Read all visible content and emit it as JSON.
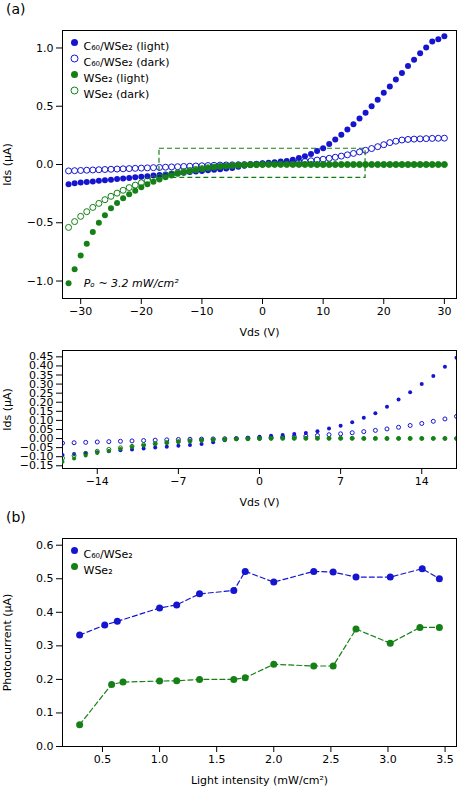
{
  "chart_data": [
    {
      "type": "scatter",
      "title": "(a)",
      "xlabel": "Vds (V)",
      "ylabel": "Ids (μA)",
      "xlim": [
        -33,
        32
      ],
      "ylim": [
        -1.15,
        1.15
      ],
      "xticks": [
        -30,
        -20,
        -10,
        0,
        10,
        20,
        30
      ],
      "yticks": [
        {
          "value": -1.0,
          "label": "−1.0"
        },
        {
          "value": -0.5,
          "label": "−0.5"
        },
        {
          "value": 0.0,
          "label": "0.0"
        },
        {
          "value": 0.5,
          "label": "0.5"
        },
        {
          "value": 1.0,
          "label": "1.0"
        }
      ],
      "legend": "upper left",
      "annotations": [
        {
          "text": "Pₒ ~ 3.2 mW/cm²",
          "x": -29.5,
          "y": -1.05
        }
      ],
      "box": {
        "x": [
          -17,
          17
        ],
        "y": [
          -0.115,
          0.135
        ],
        "color": "#158015",
        "line_style": "dashed"
      },
      "series": [
        {
          "name": "C₆₀/WSe₂ (light)",
          "color": "#1515d0",
          "marker": "circle",
          "x": [
            -32,
            -31,
            -30,
            -29,
            -28,
            -27,
            -26,
            -25,
            -24,
            -23,
            -22,
            -21,
            -20,
            -19,
            -18,
            -17,
            -16,
            -15,
            -14,
            -13,
            -12,
            -11,
            -10,
            -9,
            -8,
            -7,
            -6,
            -5,
            -4,
            -3,
            -2,
            -1,
            0,
            1,
            2,
            3,
            4,
            5,
            6,
            7,
            8,
            9,
            10,
            11,
            12,
            13,
            14,
            15,
            16,
            17,
            18,
            19,
            20,
            21,
            22,
            23,
            24,
            25,
            26,
            27,
            28,
            29,
            30
          ],
          "values": [
            -0.17,
            -0.16,
            -0.155,
            -0.15,
            -0.145,
            -0.14,
            -0.135,
            -0.13,
            -0.125,
            -0.12,
            -0.115,
            -0.11,
            -0.105,
            -0.1,
            -0.095,
            -0.09,
            -0.085,
            -0.08,
            -0.075,
            -0.07,
            -0.065,
            -0.06,
            -0.055,
            -0.05,
            -0.045,
            -0.04,
            -0.035,
            -0.03,
            -0.02,
            -0.01,
            0.0,
            0.005,
            0.01,
            0.015,
            0.02,
            0.025,
            0.03,
            0.04,
            0.055,
            0.07,
            0.09,
            0.115,
            0.14,
            0.175,
            0.215,
            0.255,
            0.3,
            0.345,
            0.395,
            0.445,
            0.5,
            0.555,
            0.615,
            0.67,
            0.73,
            0.785,
            0.845,
            0.9,
            0.955,
            1.005,
            1.055,
            1.075,
            1.1
          ]
        },
        {
          "name": "C₆₀/WSe₂ (dark)",
          "color": "#1515d0",
          "marker": "circle-open",
          "x": [
            -32,
            -31,
            -30,
            -29,
            -28,
            -27,
            -26,
            -25,
            -24,
            -23,
            -22,
            -21,
            -20,
            -19,
            -18,
            -17,
            -16,
            -15,
            -14,
            -13,
            -12,
            -11,
            -10,
            -9,
            -8,
            -7,
            -6,
            -5,
            -4,
            -3,
            -2,
            -1,
            0,
            1,
            2,
            3,
            4,
            5,
            6,
            7,
            8,
            9,
            10,
            11,
            12,
            13,
            14,
            15,
            16,
            17,
            18,
            19,
            20,
            21,
            22,
            23,
            24,
            25,
            26,
            27,
            28,
            29,
            30
          ],
          "values": [
            -0.055,
            -0.053,
            -0.051,
            -0.049,
            -0.047,
            -0.045,
            -0.043,
            -0.041,
            -0.039,
            -0.037,
            -0.035,
            -0.033,
            -0.031,
            -0.029,
            -0.027,
            -0.025,
            -0.023,
            -0.021,
            -0.019,
            -0.017,
            -0.015,
            -0.013,
            -0.011,
            -0.009,
            -0.007,
            -0.005,
            -0.004,
            -0.003,
            -0.002,
            -0.001,
            0.0,
            0.002,
            0.004,
            0.006,
            0.008,
            0.01,
            0.013,
            0.017,
            0.021,
            0.026,
            0.032,
            0.038,
            0.045,
            0.053,
            0.062,
            0.072,
            0.083,
            0.095,
            0.108,
            0.122,
            0.137,
            0.153,
            0.17,
            0.188,
            0.2,
            0.21,
            0.215,
            0.218,
            0.22,
            0.222,
            0.224,
            0.225,
            0.226
          ]
        },
        {
          "name": "WSe₂ (light)",
          "color": "#158015",
          "marker": "circle",
          "x": [
            -32,
            -31,
            -30,
            -29,
            -28,
            -27,
            -26,
            -25,
            -24,
            -23,
            -22,
            -21,
            -20,
            -19,
            -18,
            -17,
            -16,
            -15,
            -14,
            -13,
            -12,
            -11,
            -10,
            -9,
            -8,
            -7,
            -6,
            -5,
            -4,
            -3,
            -2,
            -1,
            0,
            1,
            2,
            3,
            4,
            5,
            6,
            7,
            8,
            9,
            10,
            11,
            12,
            13,
            14,
            15,
            16,
            17,
            18,
            19,
            20,
            21,
            22,
            23,
            24,
            25,
            26,
            27,
            28,
            29,
            30
          ],
          "values": [
            -1.02,
            -0.9,
            -0.78,
            -0.68,
            -0.58,
            -0.5,
            -0.435,
            -0.375,
            -0.33,
            -0.29,
            -0.255,
            -0.225,
            -0.195,
            -0.17,
            -0.148,
            -0.128,
            -0.11,
            -0.094,
            -0.08,
            -0.068,
            -0.057,
            -0.047,
            -0.038,
            -0.03,
            -0.024,
            -0.018,
            -0.014,
            -0.01,
            -0.007,
            -0.005,
            -0.003,
            -0.002,
            -0.001,
            0.0,
            0.001,
            0.001,
            0.001,
            0.001,
            0.001,
            0.001,
            0.001,
            0.001,
            0.001,
            0.001,
            0.001,
            0.001,
            0.001,
            0.001,
            0.001,
            0.001,
            0.001,
            0.001,
            0.001,
            0.001,
            0.001,
            0.001,
            0.001,
            0.001,
            0.001,
            0.001,
            0.001,
            0.001,
            0.001
          ]
        },
        {
          "name": "WSe₂ (dark)",
          "color": "#158015",
          "marker": "circle-open",
          "x": [
            -32,
            -31,
            -30,
            -29,
            -28,
            -27,
            -26,
            -25,
            -24,
            -23,
            -22,
            -21,
            -20,
            -19,
            -18,
            -17,
            -16,
            -15,
            -14,
            -13,
            -12,
            -11,
            -10,
            -9,
            -8,
            -7,
            -6,
            -5,
            -4,
            -3,
            -2,
            -1,
            0,
            1,
            2,
            3,
            4,
            5,
            6,
            7,
            8,
            9,
            10,
            11,
            12,
            13,
            14,
            15,
            16,
            17,
            18,
            19,
            20,
            21,
            22,
            23,
            24,
            25,
            26,
            27,
            28,
            29,
            30
          ],
          "values": [
            -0.54,
            -0.49,
            -0.445,
            -0.405,
            -0.368,
            -0.334,
            -0.302,
            -0.273,
            -0.246,
            -0.221,
            -0.198,
            -0.177,
            -0.157,
            -0.139,
            -0.123,
            -0.108,
            -0.094,
            -0.082,
            -0.07,
            -0.06,
            -0.051,
            -0.043,
            -0.035,
            -0.028,
            -0.022,
            -0.017,
            -0.013,
            -0.009,
            -0.006,
            -0.004,
            -0.002,
            -0.001,
            0.0,
            0.001,
            0.001,
            0.001,
            0.001,
            0.001,
            0.001,
            0.001,
            0.001,
            0.0,
            0.0,
            0.0,
            0.0,
            0.0,
            0.0,
            0.0,
            0.0,
            0.0,
            0.0,
            0.0,
            0.0,
            0.0,
            0.0,
            0.0,
            0.0,
            0.0,
            0.0,
            0.0,
            0.0,
            0.0,
            0.0
          ]
        }
      ]
    },
    {
      "type": "scatter",
      "xlabel": "Vds (V)",
      "ylabel": "Ids (μA)",
      "xlim": [
        -17,
        17
      ],
      "ylim": [
        -0.165,
        0.485
      ],
      "xticks": [
        -14,
        -7,
        0,
        7,
        14
      ],
      "yticks": [
        {
          "value": -0.15,
          "label": "−0.15"
        },
        {
          "value": -0.1,
          "label": "−0.10"
        },
        {
          "value": -0.05,
          "label": "−0.05"
        },
        {
          "value": 0.0,
          "label": "0.00"
        },
        {
          "value": 0.05,
          "label": "0.05"
        },
        {
          "value": 0.1,
          "label": "0.10"
        },
        {
          "value": 0.15,
          "label": "0.15"
        },
        {
          "value": 0.2,
          "label": "0.20"
        },
        {
          "value": 0.25,
          "label": "0.25"
        },
        {
          "value": 0.3,
          "label": "0.30"
        },
        {
          "value": 0.35,
          "label": "0.35"
        },
        {
          "value": 0.4,
          "label": "0.40"
        },
        {
          "value": 0.45,
          "label": "0.45"
        }
      ],
      "series": [
        {
          "color": "#1515d0",
          "marker": "circle",
          "x": [
            -17,
            -16,
            -15,
            -14,
            -13,
            -12,
            -11,
            -10,
            -9,
            -8,
            -7,
            -6,
            -5,
            -4,
            -3,
            -2,
            -1,
            0,
            1,
            2,
            3,
            4,
            5,
            6,
            7,
            8,
            9,
            10,
            11,
            12,
            13,
            14,
            15,
            16,
            17
          ],
          "values": [
            -0.09,
            -0.085,
            -0.08,
            -0.075,
            -0.07,
            -0.065,
            -0.06,
            -0.055,
            -0.05,
            -0.045,
            -0.04,
            -0.035,
            -0.03,
            -0.02,
            -0.01,
            0.0,
            0.005,
            0.01,
            0.015,
            0.02,
            0.025,
            0.03,
            0.04,
            0.055,
            0.07,
            0.09,
            0.115,
            0.14,
            0.175,
            0.215,
            0.255,
            0.3,
            0.345,
            0.395,
            0.445
          ]
        },
        {
          "color": "#1515d0",
          "marker": "circle-open",
          "x": [
            -17,
            -16,
            -15,
            -14,
            -13,
            -12,
            -11,
            -10,
            -9,
            -8,
            -7,
            -6,
            -5,
            -4,
            -3,
            -2,
            -1,
            0,
            1,
            2,
            3,
            4,
            5,
            6,
            7,
            8,
            9,
            10,
            11,
            12,
            13,
            14,
            15,
            16,
            17
          ],
          "values": [
            -0.025,
            -0.023,
            -0.021,
            -0.019,
            -0.017,
            -0.015,
            -0.013,
            -0.011,
            -0.009,
            -0.007,
            -0.005,
            -0.004,
            -0.003,
            -0.002,
            -0.001,
            0.0,
            0.002,
            0.004,
            0.006,
            0.008,
            0.01,
            0.013,
            0.017,
            0.021,
            0.026,
            0.032,
            0.038,
            0.045,
            0.053,
            0.062,
            0.072,
            0.083,
            0.095,
            0.108,
            0.122
          ]
        },
        {
          "color": "#158015",
          "marker": "circle",
          "x": [
            -17,
            -16,
            -15,
            -14,
            -13,
            -12,
            -11,
            -10,
            -9,
            -8,
            -7,
            -6,
            -5,
            -4,
            -3,
            -2,
            -1,
            0,
            1,
            2,
            3,
            4,
            5,
            6,
            7,
            8,
            9,
            10,
            11,
            12,
            13,
            14,
            15,
            16,
            17
          ],
          "values": [
            -0.128,
            -0.11,
            -0.094,
            -0.08,
            -0.068,
            -0.057,
            -0.047,
            -0.038,
            -0.03,
            -0.024,
            -0.018,
            -0.014,
            -0.01,
            -0.007,
            -0.005,
            -0.003,
            -0.002,
            -0.001,
            0.0,
            0.001,
            0.001,
            0.001,
            0.001,
            0.001,
            0.001,
            0.001,
            0.001,
            0.001,
            0.001,
            0.001,
            0.001,
            0.001,
            0.001,
            0.001,
            0.001
          ]
        },
        {
          "color": "#158015",
          "marker": "circle-open",
          "x": [
            -17,
            -16,
            -15,
            -14,
            -13,
            -12,
            -11,
            -10,
            -9,
            -8,
            -7,
            -6,
            -5,
            -4,
            -3,
            -2,
            -1,
            0,
            1,
            2,
            3,
            4,
            5,
            6,
            7,
            8,
            9,
            10,
            11,
            12,
            13,
            14,
            15,
            16,
            17
          ],
          "values": [
            -0.108,
            -0.094,
            -0.082,
            -0.07,
            -0.06,
            -0.051,
            -0.043,
            -0.035,
            -0.028,
            -0.022,
            -0.017,
            -0.013,
            -0.009,
            -0.006,
            -0.004,
            -0.002,
            -0.001,
            0.0,
            0.001,
            0.001,
            0.001,
            0.001,
            0.001,
            0.001,
            0.001,
            0.001,
            0.0,
            0.0,
            0.0,
            0.0,
            0.0,
            0.0,
            0.0,
            0.0,
            0.0
          ]
        }
      ]
    },
    {
      "type": "line",
      "title": "(b)",
      "xlabel": "Light intensity (mW/cm²)",
      "ylabel": "Photocurrent (μA)",
      "xlim": [
        0.15,
        3.6
      ],
      "ylim": [
        0.0,
        0.62
      ],
      "xticks": [
        0.5,
        {
          "value": 1.0,
          "label": "1.0"
        },
        1.5,
        {
          "value": 2.0,
          "label": "2.0"
        },
        2.5,
        {
          "value": 3.0,
          "label": "3.0"
        },
        3.5
      ],
      "yticks": [
        {
          "value": 0.0,
          "label": "0.0"
        },
        0.1,
        0.2,
        0.3,
        0.4,
        0.5,
        0.6
      ],
      "legend": "upper left",
      "series": [
        {
          "name": "C₆₀/WSe₂",
          "color": "#1515d0",
          "marker": "circle",
          "line_style": "dashed",
          "x": [
            0.3,
            0.52,
            0.63,
            1.0,
            1.15,
            1.35,
            1.65,
            1.75,
            2.0,
            2.35,
            2.52,
            2.72,
            3.02,
            3.3,
            3.45
          ],
          "values": [
            0.332,
            0.362,
            0.373,
            0.413,
            0.422,
            0.455,
            0.465,
            0.522,
            0.49,
            0.522,
            0.52,
            0.505,
            0.505,
            0.53,
            0.5
          ]
        },
        {
          "name": "WSe₂",
          "color": "#158015",
          "marker": "circle",
          "line_style": "dashed",
          "x": [
            0.3,
            0.58,
            0.68,
            1.0,
            1.15,
            1.35,
            1.65,
            1.75,
            2.0,
            2.35,
            2.52,
            2.72,
            3.02,
            3.28,
            3.45
          ],
          "values": [
            0.065,
            0.185,
            0.192,
            0.195,
            0.196,
            0.2,
            0.2,
            0.205,
            0.245,
            0.24,
            0.24,
            0.35,
            0.308,
            0.355,
            0.355
          ]
        }
      ]
    }
  ]
}
